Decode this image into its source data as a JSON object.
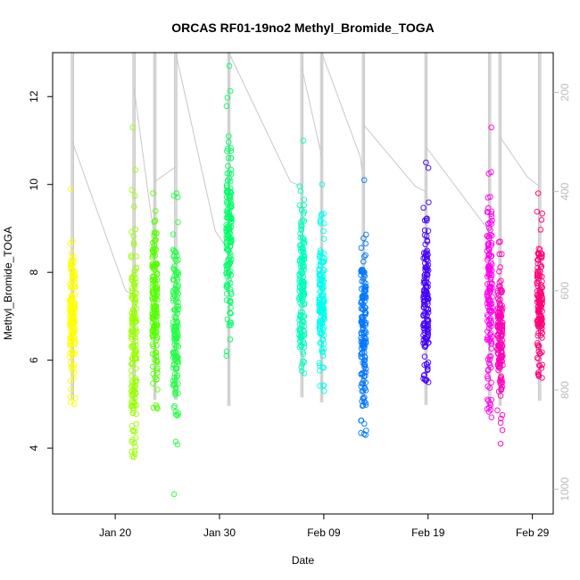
{
  "chart_data": {
    "type": "scatter",
    "title": "ORCAS RF01-19no2 Methyl_Bromide_TOGA",
    "xlabel": "Date",
    "ylabel": "Methyl_Bromide_TOGA",
    "xlim": [
      "2016-01-14",
      "2016-03-02"
    ],
    "ylim": [
      2.5,
      13
    ],
    "right_ylim": [
      1050,
      120
    ],
    "right_axis_reversed": true,
    "x_ticks": [
      {
        "date": "2016-01-20",
        "label": "Jan 20"
      },
      {
        "date": "2016-01-30",
        "label": "Jan 30"
      },
      {
        "date": "2016-02-09",
        "label": "Feb 09"
      },
      {
        "date": "2016-02-19",
        "label": "Feb 19"
      },
      {
        "date": "2016-02-29",
        "label": "Feb 29"
      }
    ],
    "y_ticks": [
      4,
      6,
      8,
      10,
      12
    ],
    "right_y_ticks": [
      200,
      400,
      600,
      800,
      1000
    ],
    "grid": false,
    "legend": "none",
    "point_style": "open circle",
    "flights": [
      {
        "date": "2016-01-15.9",
        "color": "#ffff00",
        "min": 5.0,
        "max": 9.9,
        "center": 7.1
      },
      {
        "date": "2016-01-21.8",
        "color": "#99ff00",
        "min": 3.8,
        "max": 11.3,
        "center": 6.4
      },
      {
        "date": "2016-01-23.8",
        "color": "#55ff00",
        "min": 4.9,
        "max": 9.8,
        "center": 7.4
      },
      {
        "date": "2016-01-25.8",
        "color": "#22ff44",
        "min": 2.95,
        "max": 9.8,
        "center": 6.6
      },
      {
        "date": "2016-01-30.9",
        "color": "#00ff66",
        "min": 6.1,
        "max": 12.7,
        "center": 8.9
      },
      {
        "date": "2016-02-06.9",
        "color": "#00ffbb",
        "min": 5.7,
        "max": 11.0,
        "center": 7.6
      },
      {
        "date": "2016-02-08.8",
        "color": "#00ffee",
        "min": 5.3,
        "max": 10.0,
        "center": 7.4
      },
      {
        "date": "2016-02-12.8",
        "color": "#0077ff",
        "min": 4.3,
        "max": 10.1,
        "center": 6.6
      },
      {
        "date": "2016-02-18.8",
        "color": "#4400ff",
        "min": 5.5,
        "max": 10.5,
        "center": 7.3
      },
      {
        "date": "2016-02-24.9",
        "color": "#ff00ee",
        "min": 4.7,
        "max": 11.3,
        "center": 7.4
      },
      {
        "date": "2016-02-25.9",
        "color": "#ff00bb",
        "min": 4.1,
        "max": 8.7,
        "center": 6.5
      },
      {
        "date": "2016-02-29.7",
        "color": "#ff0077",
        "min": 5.6,
        "max": 9.8,
        "center": 7.2
      }
    ],
    "altitude_trace": {
      "color": "#c8c8c8",
      "vertical_profiles": [
        {
          "date": "2016-01-15.9",
          "top": 120,
          "bottom": 820
        },
        {
          "date": "2016-01-21.8",
          "top": 120,
          "bottom": 820
        },
        {
          "date": "2016-01-23.8",
          "top": 120,
          "bottom": 820
        },
        {
          "date": "2016-01-25.8",
          "top": 120,
          "bottom": 820
        },
        {
          "date": "2016-01-30.9",
          "top": 120,
          "bottom": 832
        },
        {
          "date": "2016-02-06.9",
          "top": 120,
          "bottom": 815
        },
        {
          "date": "2016-02-08.8",
          "top": 120,
          "bottom": 825
        },
        {
          "date": "2016-02-12.8",
          "top": 120,
          "bottom": 830
        },
        {
          "date": "2016-02-18.8",
          "top": 120,
          "bottom": 830
        },
        {
          "date": "2016-02-24.9",
          "top": 120,
          "bottom": 832
        },
        {
          "date": "2016-02-25.9",
          "top": 120,
          "bottom": 832
        },
        {
          "date": "2016-02-29.7",
          "top": 120,
          "bottom": 822
        }
      ],
      "transits": [
        [
          [
            "2016-01-15.9",
            300
          ],
          [
            "2016-01-21.0",
            600
          ],
          [
            "2016-01-21.8",
            610
          ]
        ],
        [
          [
            "2016-01-21.8",
            190
          ],
          [
            "2016-01-23.2",
            410
          ],
          [
            "2016-01-23.8",
            500
          ]
        ],
        [
          [
            "2016-01-23.8",
            380
          ],
          [
            "2016-01-25.8",
            350
          ]
        ],
        [
          [
            "2016-01-25.8",
            120
          ],
          [
            "2016-01-29.6",
            480
          ],
          [
            "2016-01-30.9",
            520
          ]
        ],
        [
          [
            "2016-01-30.9",
            120
          ],
          [
            "2016-02-05.8",
            380
          ],
          [
            "2016-02-06.9",
            390
          ]
        ],
        [
          [
            "2016-02-06.9",
            150
          ],
          [
            "2016-02-08.8",
            330
          ]
        ],
        [
          [
            "2016-02-08.8",
            120
          ],
          [
            "2016-02-12.5",
            330
          ],
          [
            "2016-02-12.8",
            380
          ]
        ],
        [
          [
            "2016-02-12.8",
            265
          ],
          [
            "2016-02-17.8",
            390
          ],
          [
            "2016-02-18.8",
            400
          ]
        ],
        [
          [
            "2016-02-18.8",
            310
          ],
          [
            "2016-02-24.5",
            470
          ],
          [
            "2016-02-24.9",
            480
          ]
        ],
        [
          [
            "2016-02-25.9",
            290
          ],
          [
            "2016-02-28.5",
            370
          ],
          [
            "2016-02-29.7",
            390
          ]
        ]
      ]
    }
  }
}
